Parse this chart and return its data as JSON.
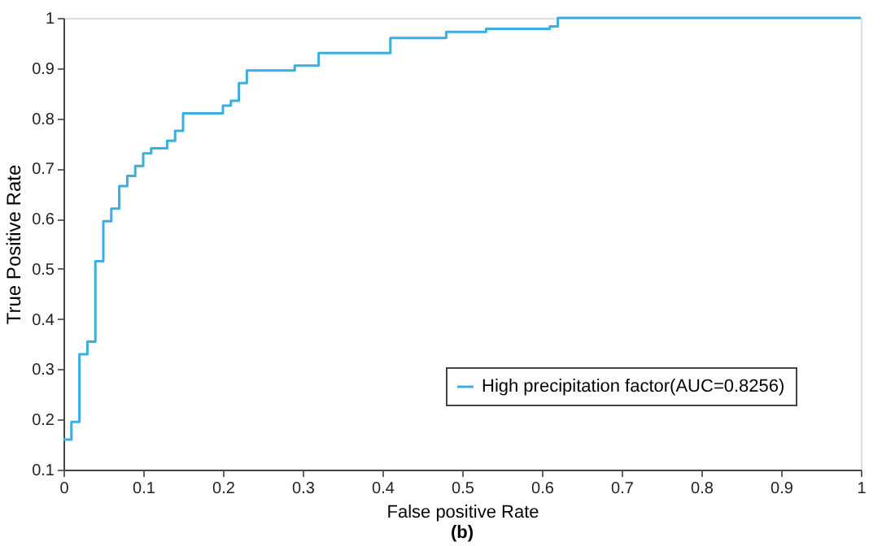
{
  "chart_data": {
    "type": "step",
    "xlabel": "False positive Rate",
    "ylabel": "True Positive Rate",
    "annotations": [
      "(b)"
    ],
    "xlim": [
      0,
      1
    ],
    "xticks": [
      0,
      0.1,
      0.2,
      0.3,
      0.4,
      0.5,
      0.6,
      0.7,
      0.8,
      0.9,
      1
    ],
    "ylim": [
      0.1,
      1
    ],
    "yticks": [
      0.1,
      0.2,
      0.3,
      0.4,
      0.5,
      0.6,
      0.7,
      0.8,
      0.9,
      1
    ],
    "grid": false,
    "legend": "bottom right",
    "series": [
      {
        "name": "High precipitation factor(AUC=0.8256)",
        "color": "#3aaee0",
        "x": [
          0,
          0.01,
          0.02,
          0.03,
          0.04,
          0.05,
          0.06,
          0.07,
          0.08,
          0.09,
          0.1,
          0.11,
          0.13,
          0.14,
          0.15,
          0.2,
          0.21,
          0.22,
          0.23,
          0.29,
          0.32,
          0.41,
          0.48,
          0.53,
          0.61,
          0.62,
          1
        ],
        "values": [
          0.16,
          0.195,
          0.33,
          0.355,
          0.515,
          0.595,
          0.62,
          0.665,
          0.685,
          0.705,
          0.73,
          0.74,
          0.755,
          0.775,
          0.81,
          0.825,
          0.835,
          0.87,
          0.895,
          0.905,
          0.93,
          0.96,
          0.972,
          0.978,
          0.983,
          1,
          1
        ]
      }
    ]
  }
}
